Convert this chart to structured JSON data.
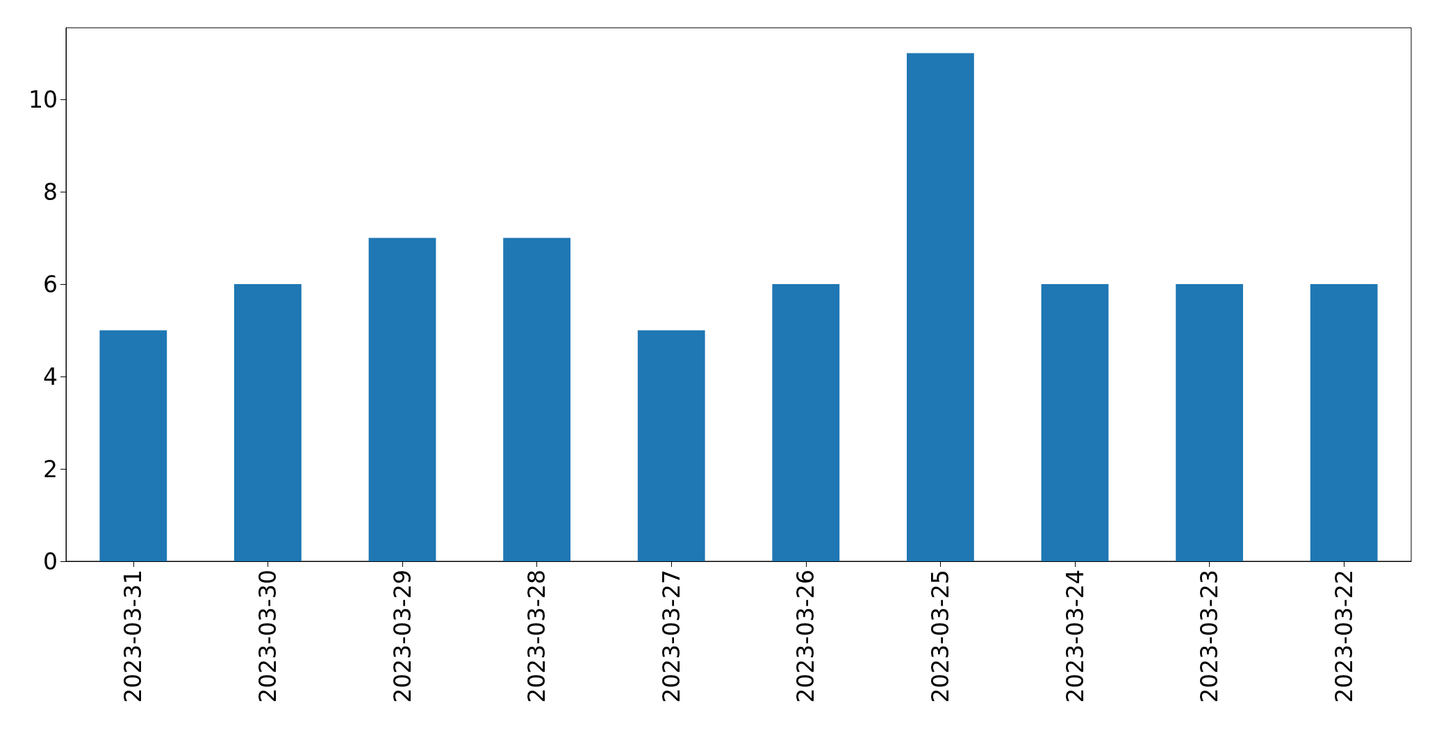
{
  "chart_data": {
    "type": "bar",
    "categories": [
      "2023-03-31",
      "2023-03-30",
      "2023-03-29",
      "2023-03-28",
      "2023-03-27",
      "2023-03-26",
      "2023-03-25",
      "2023-03-24",
      "2023-03-23",
      "2023-03-22"
    ],
    "values": [
      5,
      6,
      7,
      7,
      5,
      6,
      11,
      6,
      6,
      6
    ],
    "color": "#1f77b4",
    "ylim": [
      0,
      11.55
    ],
    "yticks": [
      0,
      2,
      4,
      6,
      8,
      10
    ],
    "grid": false
  }
}
